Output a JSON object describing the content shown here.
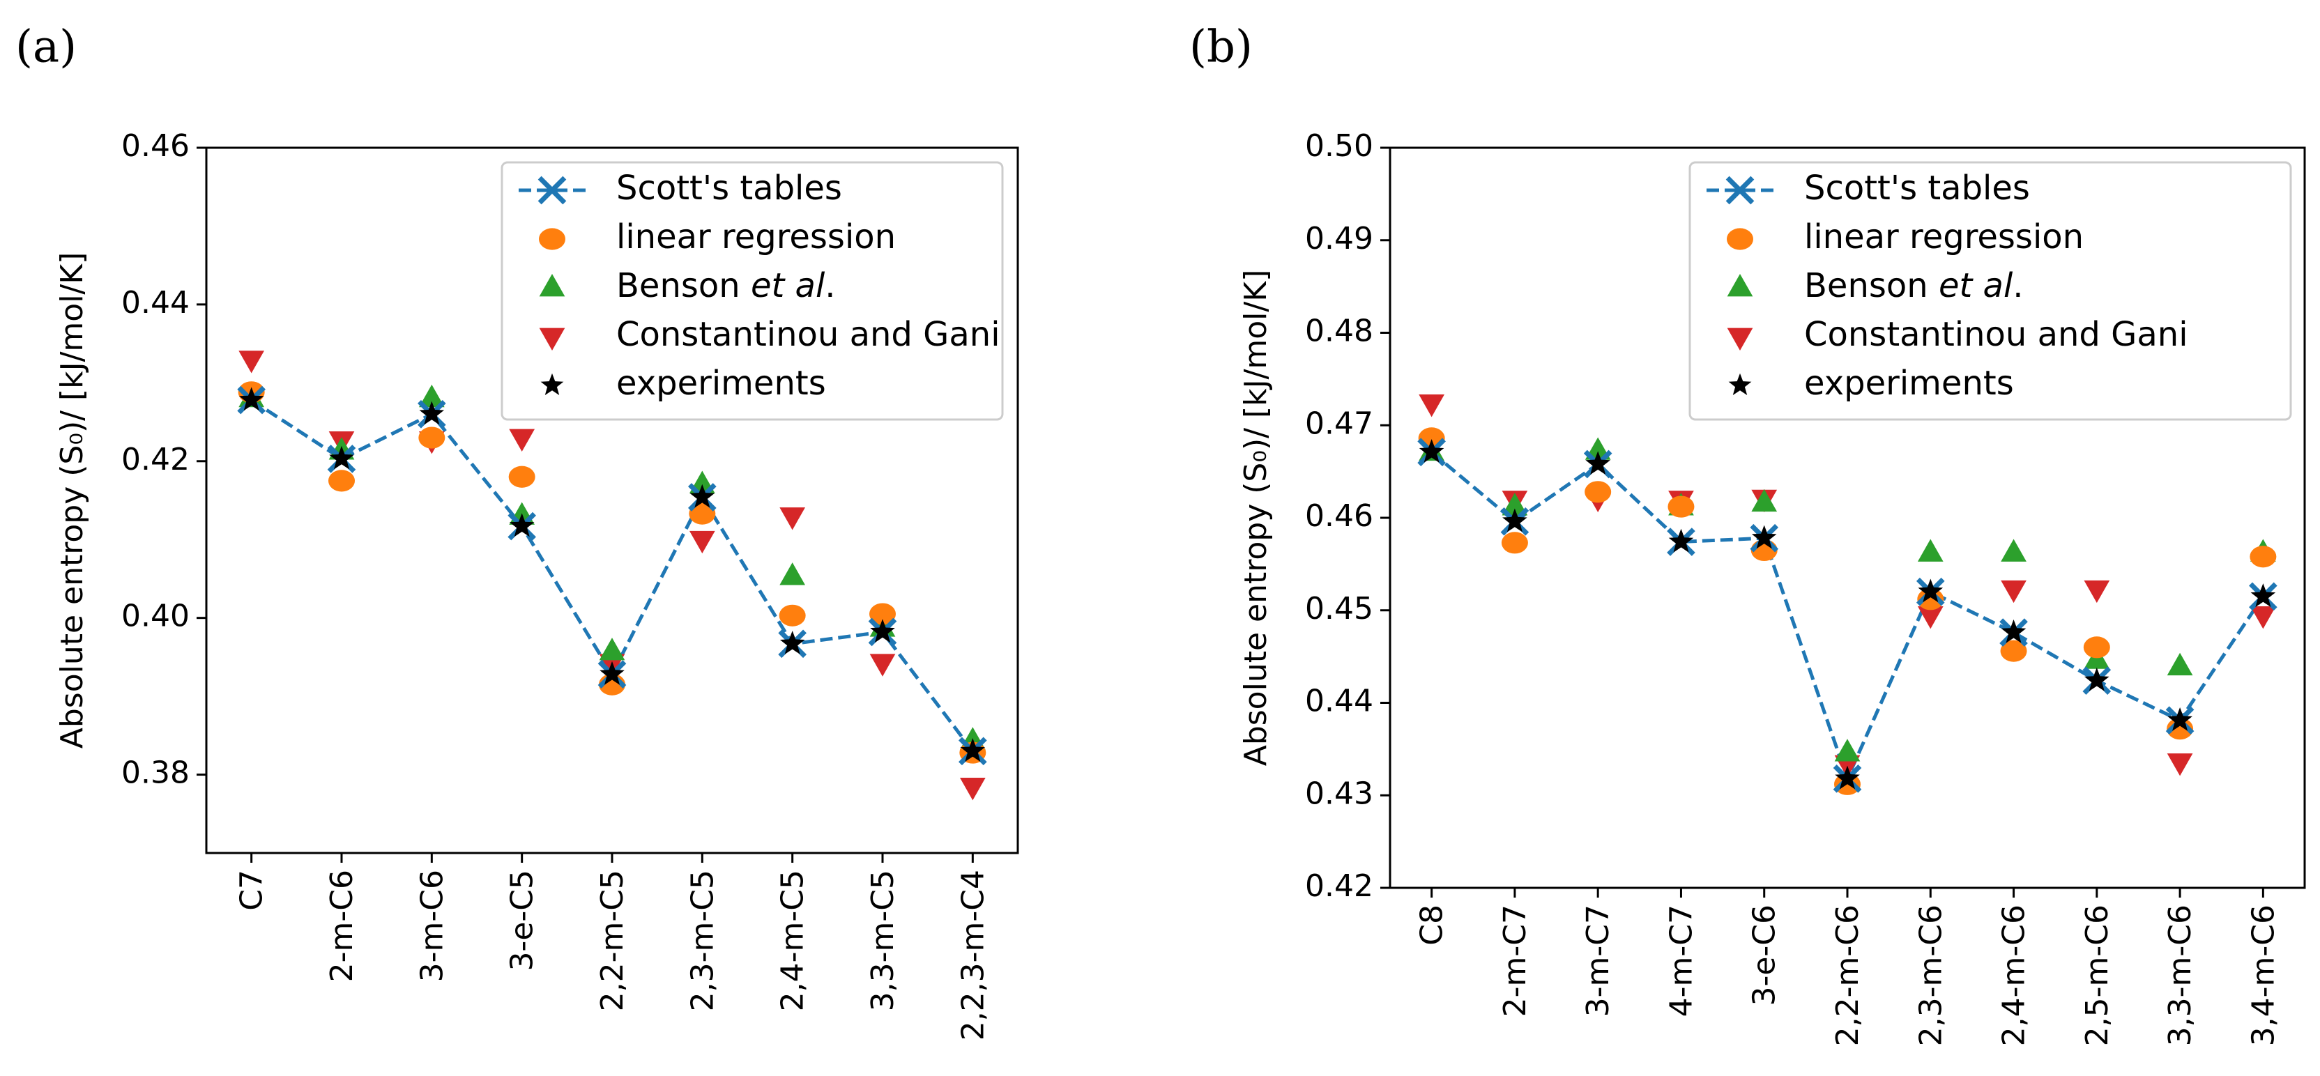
{
  "colors": {
    "scott": "#1f77b4",
    "linear": "#ff7f0e",
    "benson": "#2ca02c",
    "cg": "#d62728",
    "exp": "#000000"
  },
  "legend": {
    "items": [
      {
        "key": "scott",
        "prefix": "Scott's tables",
        "italic": "",
        "suffix": ""
      },
      {
        "key": "linear",
        "prefix": "linear regression",
        "italic": "",
        "suffix": ""
      },
      {
        "key": "benson",
        "prefix": "Benson ",
        "italic": "et al",
        "suffix": "."
      },
      {
        "key": "cg",
        "prefix": "Constantinou and Gani",
        "italic": "",
        "suffix": ""
      },
      {
        "key": "exp",
        "prefix": "experiments",
        "italic": "",
        "suffix": ""
      }
    ]
  },
  "chart_data": [
    {
      "type": "line",
      "panel_label": "(a)",
      "ylabel": "Absolute entropy (S₀)/ [kJ/mol/K]",
      "ylim": [
        0.37,
        0.46
      ],
      "yticks": [
        0.38,
        0.4,
        0.42,
        0.44,
        0.46
      ],
      "categories": [
        "C7",
        "2-m-C6",
        "3-m-C6",
        "3-e-C5",
        "2,2-m-C5",
        "2,3-m-C5",
        "2,4-m-C5",
        "3,3-m-C5",
        "2,2,3-m-C4"
      ],
      "legend_position": "top-right",
      "series": [
        {
          "name": "Scott's tables",
          "key": "scott",
          "values": [
            0.4278,
            0.4203,
            0.426,
            0.4117,
            0.3928,
            0.4154,
            0.3967,
            0.3982,
            0.383
          ]
        },
        {
          "name": "linear regression",
          "key": "linear",
          "values": [
            0.4288,
            0.4175,
            0.423,
            0.418,
            0.3915,
            0.4133,
            0.4003,
            0.4005,
            0.3828
          ]
        },
        {
          "name": "Benson et al.",
          "key": "benson",
          "values": [
            0.428,
            0.4213,
            0.428,
            0.413,
            0.3957,
            0.417,
            0.4053,
            0.3987,
            0.3843
          ]
        },
        {
          "name": "Constantinou and Gani",
          "key": "cg",
          "values": [
            0.433,
            0.4227,
            0.4227,
            0.423,
            0.3943,
            0.41,
            0.413,
            0.3943,
            0.3785
          ]
        },
        {
          "name": "experiments",
          "key": "exp",
          "values": [
            0.4278,
            0.4203,
            0.426,
            0.4117,
            0.3928,
            0.4154,
            0.3967,
            0.3982,
            0.383
          ]
        }
      ]
    },
    {
      "type": "line",
      "panel_label": "(b)",
      "ylabel": "Absolute entropy (S₀)/ [kJ/mol/K]",
      "ylim": [
        0.42,
        0.5
      ],
      "yticks": [
        0.42,
        0.43,
        0.44,
        0.45,
        0.46,
        0.47,
        0.48,
        0.49,
        0.5
      ],
      "categories": [
        "C8",
        "2-m-C7",
        "3-m-C7",
        "4-m-C7",
        "3-e-C6",
        "2,2-m-C6",
        "2,3-m-C6",
        "2,4-m-C6",
        "2,5-m-C6",
        "3,3-m-C6",
        "3,4-m-C6"
      ],
      "legend_position": "top-right",
      "series": [
        {
          "name": "Scott's tables",
          "key": "scott",
          "values": [
            0.4671,
            0.4596,
            0.4658,
            0.4574,
            0.4578,
            0.4318,
            0.452,
            0.4476,
            0.4424,
            0.4381,
            0.4515
          ]
        },
        {
          "name": "linear regression",
          "key": "linear",
          "values": [
            0.4686,
            0.4573,
            0.4628,
            0.4612,
            0.4565,
            0.4312,
            0.4512,
            0.4456,
            0.446,
            0.4372,
            0.4558
          ]
        },
        {
          "name": "Benson et al.",
          "key": "benson",
          "values": [
            0.4671,
            0.4612,
            0.4672,
            0.4612,
            0.4616,
            0.4346,
            0.4562,
            0.4562,
            0.4446,
            0.4439,
            0.4562
          ]
        },
        {
          "name": "Constantinou and Gani",
          "key": "cg",
          "values": [
            0.4724,
            0.462,
            0.4621,
            0.462,
            0.4621,
            0.4334,
            0.4495,
            0.4523,
            0.4523,
            0.4336,
            0.4495
          ]
        },
        {
          "name": "experiments",
          "key": "exp",
          "values": [
            0.4671,
            0.4596,
            0.4658,
            0.4574,
            0.4578,
            0.4318,
            0.452,
            0.4476,
            0.4424,
            0.4381,
            0.4515
          ]
        }
      ]
    }
  ]
}
